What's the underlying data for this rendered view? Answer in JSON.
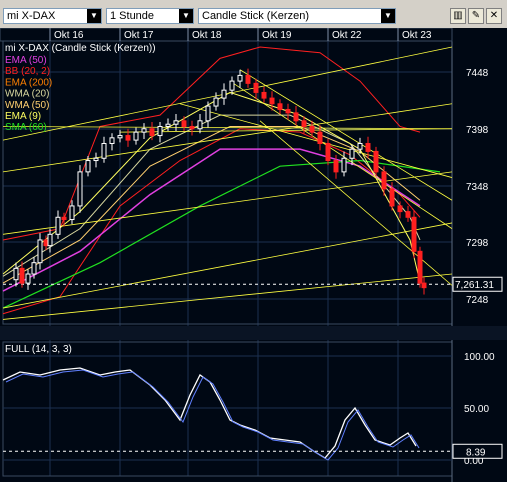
{
  "toolbar": {
    "instrument": "mi X-DAX",
    "interval": "1 Stunde",
    "chart_type": "Candle Stick (Kerzen)",
    "icons": [
      "bar-chart-icon",
      "pen-icon",
      "close-icon"
    ]
  },
  "date_labels": [
    "Okt 16",
    "Okt 17",
    "Okt 18",
    "Okt 19",
    "Okt 22",
    "Okt 23"
  ],
  "price_panel": {
    "title": "mi X-DAX (Candle Stick (Kerzen))",
    "y_ticks": [
      "7448",
      "7398",
      "7348",
      "7298",
      "7248"
    ],
    "last_price": "7,261.31",
    "legend": [
      {
        "label": "EMA (50)",
        "color": "#e040e0"
      },
      {
        "label": "BB (20, 2)",
        "color": "#ff2020"
      },
      {
        "label": "EMA (200)",
        "color": "#ff8000"
      },
      {
        "label": "WMA (20)",
        "color": "#d8d8a0"
      },
      {
        "label": "WMA (50)",
        "color": "#ffd070"
      },
      {
        "label": "EMA (9)",
        "color": "#ffff60"
      },
      {
        "label": "SMA (60)",
        "color": "#20e020"
      }
    ]
  },
  "osc_panel": {
    "title": "FULL (14, 3, 3)",
    "y_ticks": [
      "100.00",
      "50.00",
      "0.00"
    ],
    "last_value": "8.39"
  },
  "colors": {
    "background": "#000814",
    "grid": "#1c3050",
    "candle_up": "#ffffff",
    "candle_down": "#ff2020",
    "trendline": "#ffff40"
  }
}
